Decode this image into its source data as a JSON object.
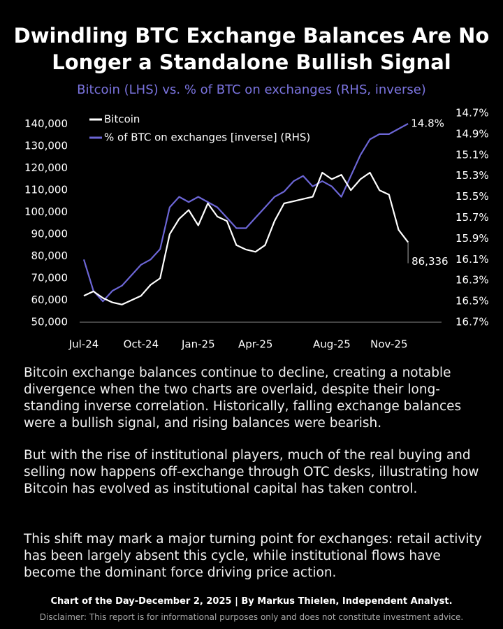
{
  "chart_data": {
    "type": "line",
    "title": "Dwindling BTC Exchange Balances Are No Longer a Standalone Bullish Signal",
    "subtitle": "Bitcoin (LHS) vs. % of BTC on exchanges (RHS, inverse)",
    "x": [
      "Jul-24",
      null,
      null,
      null,
      null,
      null,
      "Oct-24",
      null,
      null,
      null,
      null,
      null,
      "Jan-25",
      null,
      null,
      null,
      null,
      null,
      "Apr-25",
      null,
      null,
      null,
      null,
      null,
      null,
      null,
      "Aug-25",
      null,
      null,
      null,
      null,
      null,
      "Nov-25",
      null,
      null
    ],
    "series": [
      {
        "name": "Bitcoin",
        "color": "#ffffff",
        "values": [
          62000,
          64000,
          61000,
          59000,
          58000,
          60000,
          62000,
          67000,
          70000,
          90000,
          97000,
          101000,
          94000,
          104000,
          98000,
          96000,
          85000,
          83000,
          82000,
          85000,
          96000,
          104000,
          105000,
          106000,
          107000,
          118000,
          115000,
          117000,
          110000,
          115000,
          118000,
          110000,
          108000,
          92000,
          86336
        ],
        "value_labels": [
          null,
          null,
          null,
          null,
          null,
          null,
          null,
          null,
          null,
          null,
          null,
          null,
          null,
          null,
          null,
          null,
          null,
          null,
          null,
          null,
          null,
          null,
          null,
          null,
          null,
          null,
          null,
          null,
          null,
          null,
          null,
          null,
          null,
          null,
          "86,336"
        ]
      },
      {
        "name": "% of BTC on exchanges [inverse] (RHS)",
        "color": "#6c66d6",
        "axis": "y2",
        "values": [
          16.1,
          16.4,
          16.5,
          16.4,
          16.35,
          16.25,
          16.15,
          16.1,
          16.0,
          15.6,
          15.5,
          15.55,
          15.5,
          15.55,
          15.6,
          15.7,
          15.8,
          15.8,
          15.7,
          15.6,
          15.5,
          15.45,
          15.35,
          15.3,
          15.4,
          15.35,
          15.4,
          15.5,
          15.3,
          15.1,
          14.95,
          14.9,
          14.9,
          14.85,
          14.8
        ],
        "value_labels": [
          null,
          null,
          null,
          null,
          null,
          null,
          null,
          null,
          null,
          null,
          null,
          null,
          null,
          null,
          null,
          null,
          null,
          null,
          null,
          null,
          null,
          null,
          null,
          null,
          null,
          null,
          null,
          null,
          null,
          null,
          null,
          null,
          null,
          null,
          "14.8%"
        ]
      }
    ],
    "ylim": [
      50000,
      145000
    ],
    "yticks": [
      {
        "value": 50000,
        "label": "50,000"
      },
      {
        "value": 60000,
        "label": "60,000"
      },
      {
        "value": 70000,
        "label": "70,000"
      },
      {
        "value": 80000,
        "label": "80,000"
      },
      {
        "value": 90000,
        "label": "90,000"
      },
      {
        "value": 100000,
        "label": "100,000"
      },
      {
        "value": 110000,
        "label": "110,000"
      },
      {
        "value": 120000,
        "label": "120,000"
      },
      {
        "value": 130000,
        "label": "130,000"
      },
      {
        "value": 140000,
        "label": "140,000"
      }
    ],
    "y2lim": [
      16.7,
      14.7
    ],
    "y2ticks": [
      {
        "value": 14.7,
        "label": "14.7%"
      },
      {
        "value": 14.9,
        "label": "14.9%"
      },
      {
        "value": 15.1,
        "label": "15.1%"
      },
      {
        "value": 15.3,
        "label": "15.3%"
      },
      {
        "value": 15.5,
        "label": "15.5%"
      },
      {
        "value": 15.7,
        "label": "15.7%"
      },
      {
        "value": 15.9,
        "label": "15.9%"
      },
      {
        "value": 16.1,
        "label": "16.1%"
      },
      {
        "value": 16.3,
        "label": "16.3%"
      },
      {
        "value": 16.5,
        "label": "16.5%"
      },
      {
        "value": 16.7,
        "label": "16.7%"
      }
    ],
    "legend": "upper left"
  },
  "text": {
    "paragraphs": [
      "Bitcoin exchange balances continue to decline, creating a notable divergence when the two charts are overlaid, despite their long-standing inverse correlation. Historically, falling exchange balances were a bullish signal, and rising balances were bearish.",
      "But with the rise of institutional players, much of the real buying and selling now happens off-exchange through OTC desks, illustrating how Bitcoin has evolved as institutional capital has taken control.",
      "This shift may mark a major turning point for exchanges: retail activity has been largely absent this cycle, while institutional flows have become the dominant force driving price action."
    ],
    "footer": "Chart of the Day-December 2, 2025  |  By Markus Thielen, Independent Analyst.",
    "disclaimer": "Disclaimer: This report is for informational purposes only and does not constitute investment advice."
  }
}
